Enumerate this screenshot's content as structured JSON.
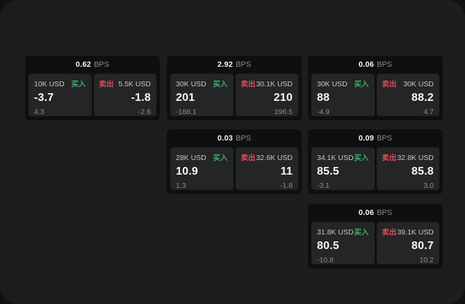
{
  "colors": {
    "buy_green": "#3fa96c",
    "sell_red": "#d5505e",
    "window_bg": "#1c1d1e",
    "card_bg": "#0e0f10",
    "panel_bg": "#242526"
  },
  "labels": {
    "bps_unit": "BPS",
    "buy_tag": "买入",
    "sell_tag": "卖出"
  },
  "cards": [
    {
      "row": 1,
      "col": 1,
      "bps_value": "0.62",
      "bps_unit": "BPS",
      "buy": {
        "amount": "10K USD",
        "tag": "买入",
        "price": "-3.7",
        "delta": "4.3"
      },
      "sell": {
        "amount": "5.5K USD",
        "tag": "卖出",
        "price": "-1.8",
        "delta": "-2.6"
      }
    },
    {
      "row": 1,
      "col": 2,
      "bps_value": "2.92",
      "bps_unit": "BPS",
      "buy": {
        "amount": "30K USD",
        "tag": "买入",
        "price": "201",
        "delta": "-188.1"
      },
      "sell": {
        "amount": "30.1K USD",
        "tag": "卖出",
        "price": "210",
        "delta": "196.5"
      }
    },
    {
      "row": 1,
      "col": 3,
      "bps_value": "0.06",
      "bps_unit": "BPS",
      "buy": {
        "amount": "30K USD",
        "tag": "买入",
        "price": "88",
        "delta": "-4.9"
      },
      "sell": {
        "amount": "30K USD",
        "tag": "卖出",
        "price": "88.2",
        "delta": "4.7"
      }
    },
    {
      "row": 2,
      "col": 2,
      "bps_value": "0.03",
      "bps_unit": "BPS",
      "buy": {
        "amount": "28K USD",
        "tag": "买入",
        "price": "10.9",
        "delta": "1.3"
      },
      "sell": {
        "amount": "32.6K USD",
        "tag": "卖出",
        "price": "11",
        "delta": "-1.8"
      }
    },
    {
      "row": 2,
      "col": 3,
      "bps_value": "0.09",
      "bps_unit": "BPS",
      "buy": {
        "amount": "34.1K USD",
        "tag": "买入",
        "price": "85.5",
        "delta": "-3.1"
      },
      "sell": {
        "amount": "32.8K USD",
        "tag": "卖出",
        "price": "85.8",
        "delta": "3.0"
      }
    },
    {
      "row": 3,
      "col": 3,
      "bps_value": "0.06",
      "bps_unit": "BPS",
      "buy": {
        "amount": "31.8K USD",
        "tag": "买入",
        "price": "80.5",
        "delta": "-10.8"
      },
      "sell": {
        "amount": "39.1K USD",
        "tag": "卖出",
        "price": "80.7",
        "delta": "10.2"
      }
    }
  ]
}
